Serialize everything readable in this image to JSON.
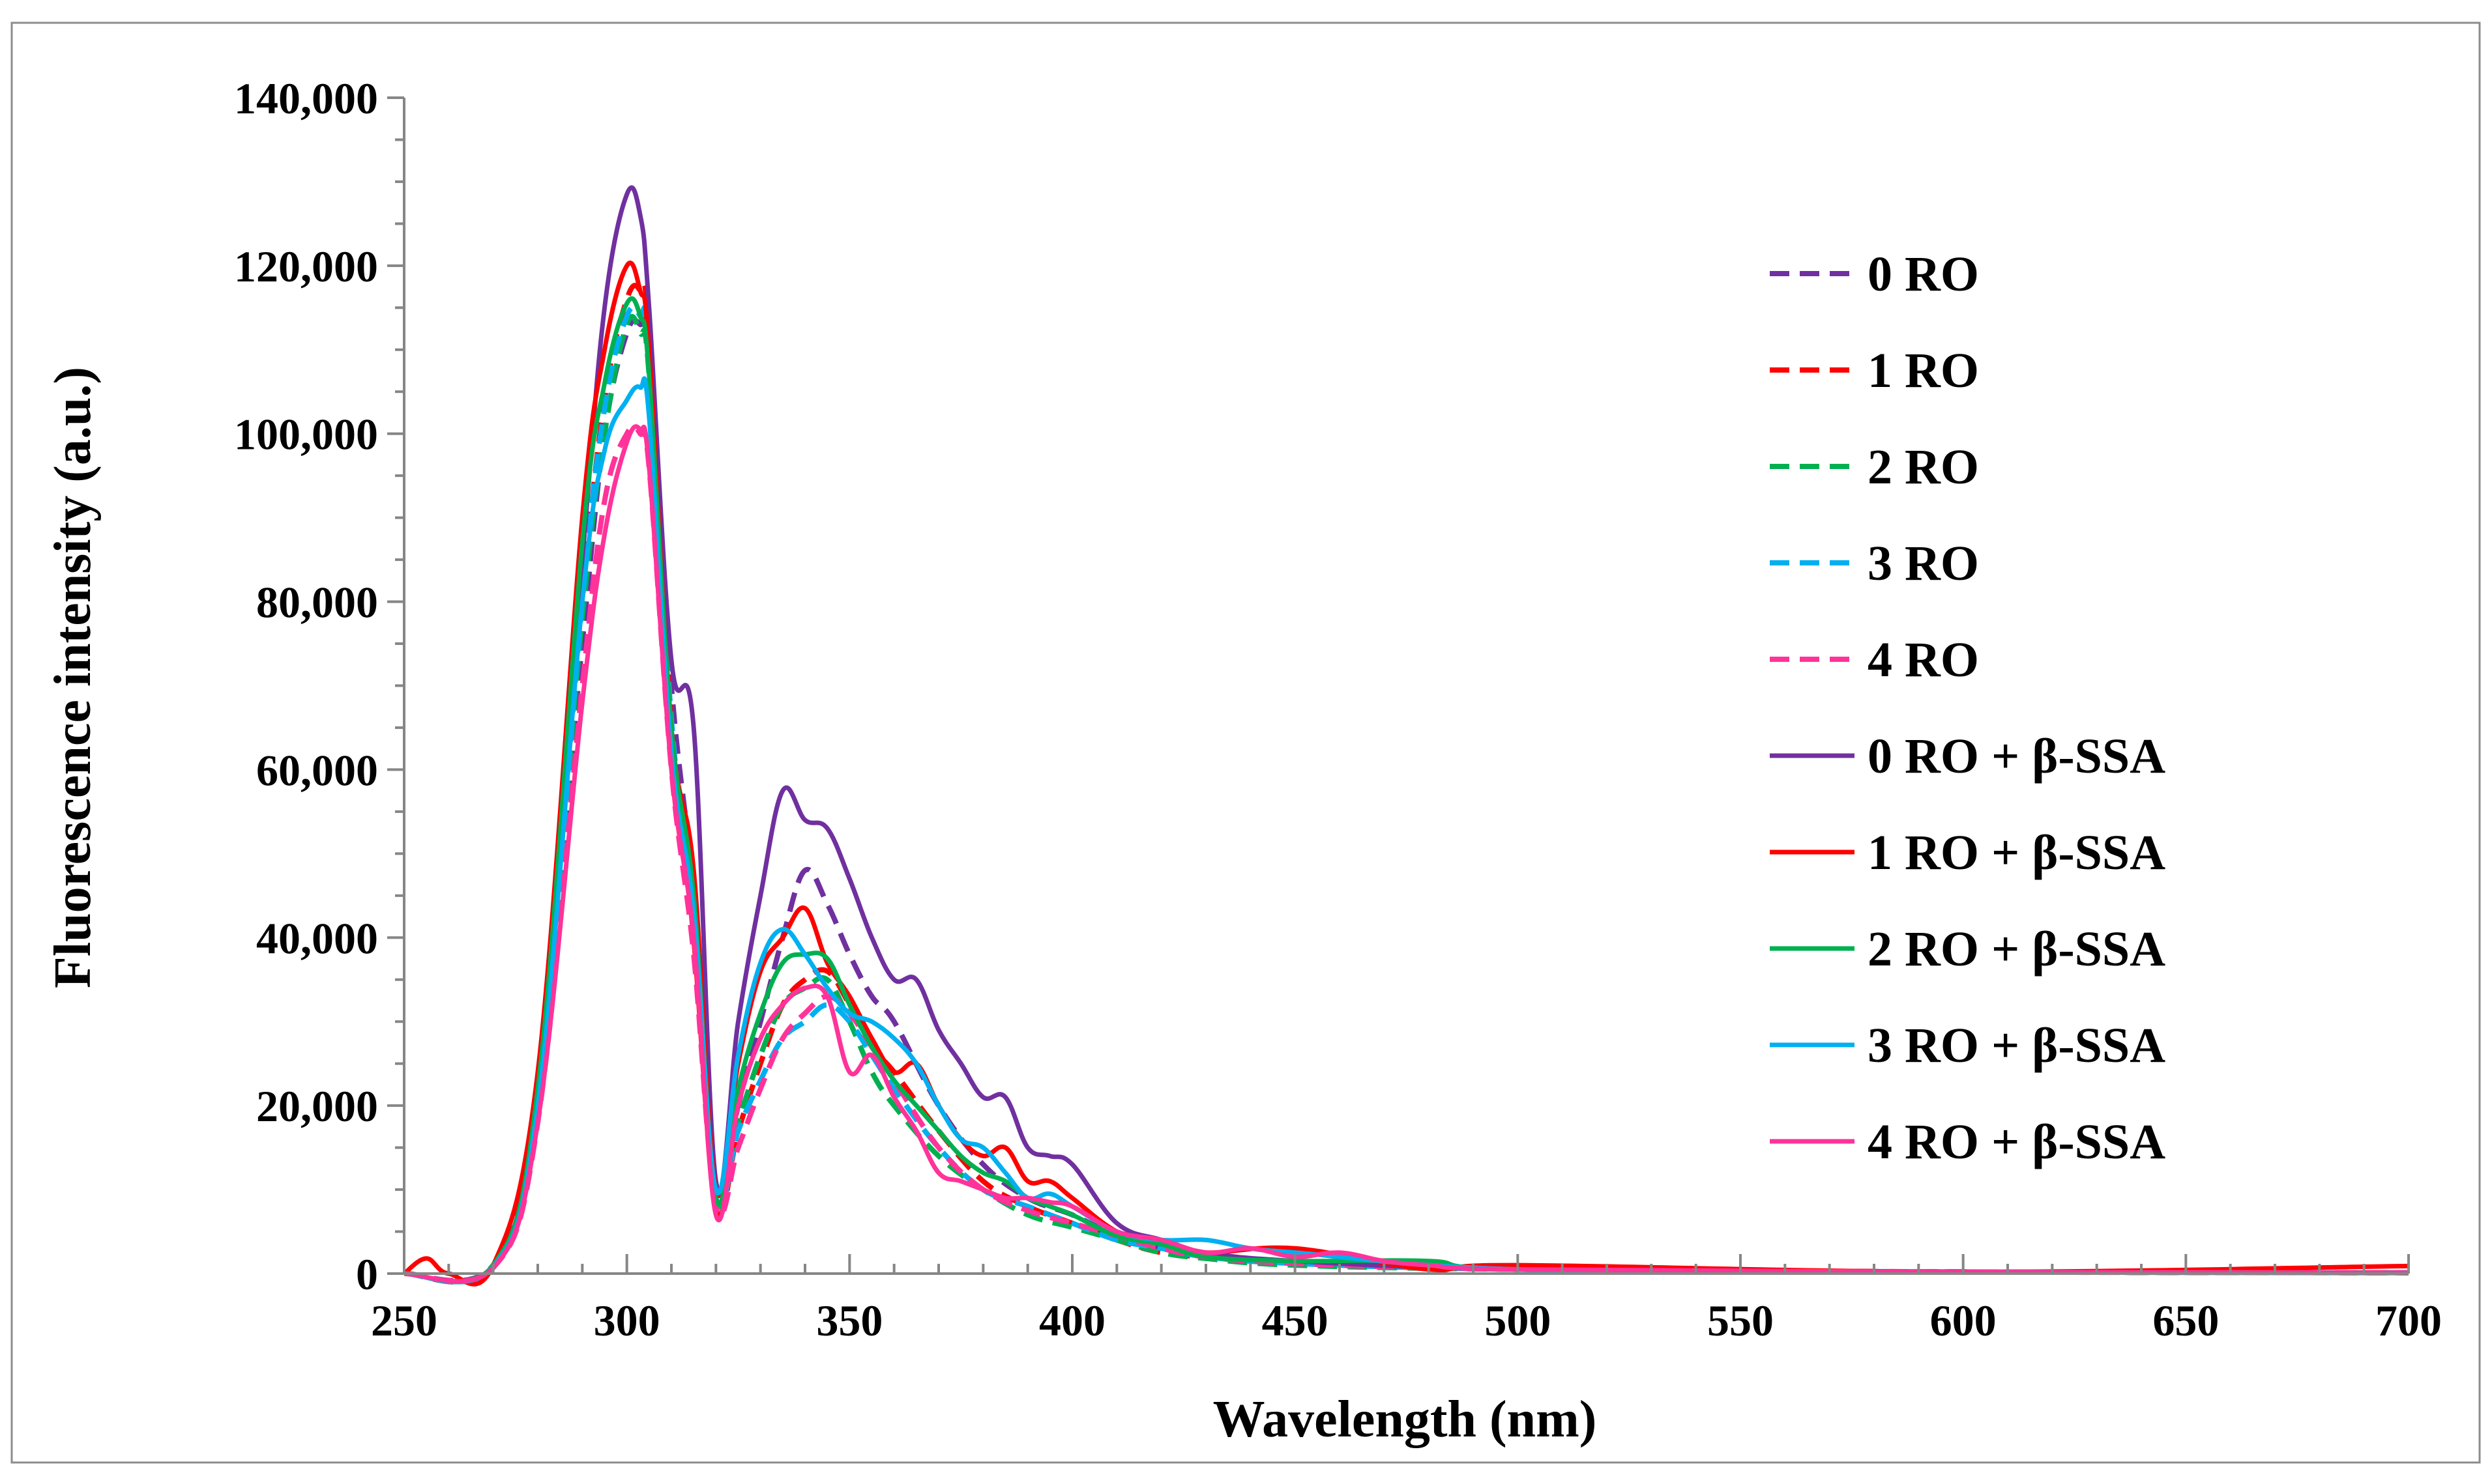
{
  "chart_data": {
    "type": "line",
    "title": "",
    "xlabel": "Wavelength (nm)",
    "ylabel": "Fluorescence intensity  (a.u.)",
    "xlim": [
      250,
      700
    ],
    "ylim": [
      0,
      140000
    ],
    "x_ticks": [
      "250",
      "300",
      "350",
      "400",
      "450",
      "500",
      "550",
      "600",
      "650",
      "700"
    ],
    "y_ticks": [
      "0",
      "20,000",
      "40,000",
      "60,000",
      "80,000",
      "100,000",
      "120,000",
      "140,000"
    ],
    "grid": false,
    "legend_position": "right",
    "series": [
      {
        "name": "0 RO",
        "color": "#7030a0",
        "dash": true,
        "x": [
          250,
          270,
          280,
          290,
          295,
          300,
          303,
          305,
          310,
          315,
          320,
          325,
          330,
          335,
          340,
          345,
          350,
          355,
          360,
          370,
          380,
          390,
          400,
          410,
          420,
          430,
          450,
          500,
          600,
          700
        ],
        "y": [
          0,
          1000,
          20000,
          75000,
          100000,
          112000,
          113000,
          110000,
          70000,
          45000,
          9000,
          20000,
          30000,
          40000,
          48000,
          44000,
          38000,
          33000,
          30000,
          20000,
          13000,
          9000,
          7000,
          4500,
          3000,
          2200,
          1200,
          500,
          200,
          100
        ]
      },
      {
        "name": "1 RO",
        "color": "#ff0000",
        "dash": true,
        "x": [
          250,
          270,
          280,
          290,
          295,
          300,
          303,
          305,
          310,
          315,
          320,
          325,
          330,
          335,
          340,
          345,
          350,
          355,
          360,
          370,
          380,
          390,
          400,
          410,
          420,
          430,
          450,
          500,
          600,
          700
        ],
        "y": [
          0,
          1000,
          22000,
          80000,
          104000,
          116000,
          117000,
          112000,
          65000,
          40000,
          8000,
          17000,
          25000,
          32000,
          35000,
          36000,
          32000,
          27000,
          24000,
          17000,
          11000,
          8000,
          6000,
          4000,
          2500,
          2000,
          1500,
          600,
          200,
          100
        ]
      },
      {
        "name": "2 RO",
        "color": "#00b050",
        "dash": true,
        "x": [
          250,
          270,
          280,
          290,
          295,
          300,
          303,
          305,
          310,
          315,
          320,
          325,
          330,
          335,
          340,
          345,
          350,
          355,
          360,
          370,
          380,
          390,
          400,
          410,
          420,
          430,
          450,
          500,
          600,
          700
        ],
        "y": [
          0,
          1000,
          21000,
          78000,
          100000,
          113000,
          112000,
          107000,
          64000,
          42000,
          9000,
          18000,
          26000,
          32000,
          34000,
          35000,
          30000,
          24000,
          20000,
          14000,
          10000,
          7000,
          5500,
          4000,
          2500,
          1800,
          1000,
          500,
          200,
          100
        ]
      },
      {
        "name": "3 RO",
        "color": "#00b0f0",
        "dash": true,
        "x": [
          250,
          270,
          280,
          290,
          295,
          300,
          303,
          305,
          310,
          315,
          320,
          325,
          330,
          335,
          340,
          345,
          350,
          355,
          360,
          370,
          380,
          390,
          400,
          410,
          420,
          430,
          450,
          500,
          600,
          700
        ],
        "y": [
          0,
          800,
          20000,
          80000,
          103000,
          114000,
          114000,
          110000,
          66000,
          43000,
          9000,
          17000,
          23000,
          28000,
          30000,
          32000,
          30000,
          26000,
          22000,
          15000,
          10000,
          8000,
          6000,
          4000,
          3000,
          2000,
          1200,
          500,
          200,
          100
        ]
      },
      {
        "name": "4 RO",
        "color": "#ff3399",
        "dash": true,
        "x": [
          250,
          270,
          280,
          290,
          295,
          300,
          303,
          305,
          310,
          315,
          320,
          325,
          330,
          335,
          340,
          345,
          350,
          355,
          360,
          370,
          380,
          390,
          400,
          410,
          420,
          430,
          450,
          500,
          600,
          700
        ],
        "y": [
          0,
          700,
          18000,
          70000,
          92000,
          100000,
          100000,
          96000,
          60000,
          38000,
          8000,
          15000,
          22000,
          28000,
          31000,
          33000,
          31000,
          27000,
          23000,
          15000,
          10000,
          7500,
          6000,
          4500,
          3000,
          2000,
          1200,
          500,
          200,
          100
        ]
      },
      {
        "name": "0 RO + β-SSA",
        "color": "#7030a0",
        "dash": false,
        "x": [
          250,
          270,
          280,
          290,
          295,
          300,
          303,
          305,
          310,
          315,
          320,
          325,
          330,
          335,
          340,
          345,
          350,
          355,
          360,
          365,
          370,
          375,
          380,
          385,
          390,
          395,
          400,
          410,
          420,
          430,
          450,
          500,
          600,
          700
        ],
        "y": [
          0,
          1000,
          22000,
          85000,
          115000,
          128500,
          126000,
          115000,
          73000,
          65000,
          11000,
          30000,
          45000,
          57500,
          54000,
          53000,
          47000,
          40000,
          35000,
          35000,
          29000,
          25000,
          21000,
          21000,
          15000,
          14000,
          13000,
          6000,
          4000,
          2500,
          1500,
          500,
          200,
          100
        ]
      },
      {
        "name": "1 RO + β-SSA",
        "color": "#ff0000",
        "dash": false,
        "x": [
          250,
          255,
          260,
          270,
          280,
          290,
          295,
          300,
          303,
          305,
          310,
          315,
          320,
          325,
          330,
          335,
          340,
          345,
          350,
          355,
          360,
          365,
          370,
          375,
          380,
          385,
          390,
          395,
          400,
          410,
          420,
          430,
          450,
          480,
          500,
          600,
          700
        ],
        "y": [
          0,
          1800,
          0,
          1000,
          24000,
          90000,
          110000,
          120000,
          117000,
          110000,
          65000,
          48000,
          10000,
          25000,
          36000,
          40000,
          43500,
          37000,
          33000,
          28000,
          24000,
          25000,
          20000,
          16000,
          14000,
          15000,
          11000,
          11000,
          9000,
          5000,
          3500,
          2500,
          3000,
          500,
          1000,
          200,
          900
        ]
      },
      {
        "name": "2 RO + β-SSA",
        "color": "#00b050",
        "dash": false,
        "x": [
          250,
          270,
          280,
          290,
          295,
          300,
          303,
          305,
          310,
          315,
          320,
          325,
          330,
          335,
          340,
          345,
          350,
          355,
          360,
          365,
          370,
          375,
          380,
          385,
          390,
          395,
          400,
          410,
          420,
          430,
          450,
          480,
          500,
          600,
          700
        ],
        "y": [
          0,
          1000,
          22000,
          87000,
          106000,
          115500,
          114000,
          107000,
          65000,
          45000,
          9000,
          22000,
          31000,
          37000,
          38000,
          37500,
          32000,
          27000,
          23000,
          20000,
          17000,
          14000,
          12000,
          11000,
          9000,
          8000,
          7000,
          4500,
          3500,
          2000,
          1500,
          1500,
          500,
          200,
          100
        ]
      },
      {
        "name": "3 RO + β-SSA",
        "color": "#00b0f0",
        "dash": false,
        "x": [
          250,
          270,
          280,
          290,
          295,
          300,
          303,
          305,
          310,
          315,
          320,
          325,
          330,
          335,
          340,
          345,
          350,
          355,
          360,
          365,
          370,
          375,
          380,
          385,
          390,
          395,
          400,
          410,
          420,
          430,
          440,
          450,
          500,
          600,
          700
        ],
        "y": [
          0,
          800,
          20000,
          80000,
          98000,
          104000,
          105500,
          102000,
          62000,
          43000,
          10000,
          26000,
          37000,
          41000,
          38000,
          34000,
          31000,
          30000,
          28000,
          25000,
          20000,
          16000,
          15000,
          12000,
          9000,
          9500,
          8000,
          5000,
          4000,
          4000,
          3000,
          2500,
          500,
          200,
          100
        ]
      },
      {
        "name": "4 RO + β-SSA",
        "color": "#ff3399",
        "dash": false,
        "x": [
          250,
          270,
          280,
          290,
          295,
          300,
          303,
          305,
          310,
          315,
          320,
          325,
          330,
          335,
          340,
          345,
          350,
          355,
          360,
          365,
          370,
          375,
          380,
          385,
          390,
          395,
          400,
          410,
          420,
          430,
          440,
          450,
          460,
          470,
          480,
          500,
          600,
          700
        ],
        "y": [
          0,
          700,
          18000,
          68000,
          88000,
          99000,
          100500,
          96000,
          60000,
          40000,
          7000,
          20000,
          28000,
          32000,
          34000,
          33000,
          24000,
          26000,
          21000,
          17000,
          12000,
          11000,
          10000,
          9000,
          9000,
          8500,
          8000,
          5000,
          4000,
          2500,
          3000,
          2000,
          2500,
          1500,
          1000,
          500,
          200,
          100
        ]
      }
    ]
  }
}
